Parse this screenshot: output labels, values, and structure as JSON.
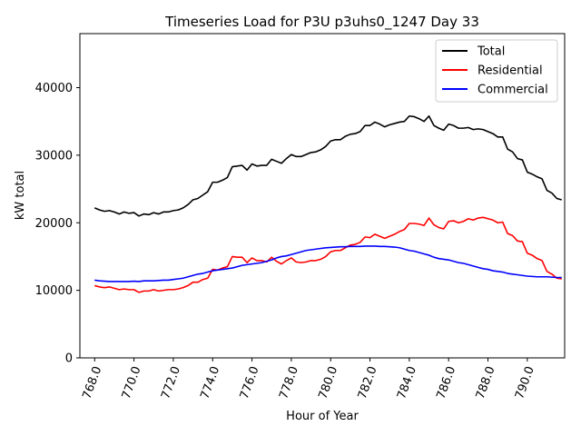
{
  "chart_data": {
    "type": "line",
    "title": "Timeseries Load for P3U p3uhs0_1247  Day 33",
    "xlabel": "Hour of Year",
    "ylabel": "kW total",
    "xlim": [
      767.25,
      791.9
    ],
    "ylim": [
      0,
      48000
    ],
    "xticks": [
      768,
      770,
      772,
      774,
      776,
      778,
      780,
      782,
      784,
      786,
      788,
      790
    ],
    "xtick_labels": [
      "768.0",
      "770.0",
      "772.0",
      "774.0",
      "776.0",
      "778.0",
      "780.0",
      "782.0",
      "784.0",
      "786.0",
      "788.0",
      "790.0"
    ],
    "yticks": [
      0,
      10000,
      20000,
      30000,
      40000
    ],
    "ytick_labels": [
      "0",
      "10000",
      "20000",
      "30000",
      "40000"
    ],
    "legend_position": "top-right",
    "grid": false,
    "x_start": 768.0,
    "x_step": 0.25,
    "series": [
      {
        "name": "Total",
        "color": "#000000",
        "values": [
          22200,
          21900,
          21700,
          21800,
          21600,
          21300,
          21600,
          21400,
          21500,
          21000,
          21300,
          21200,
          21500,
          21300,
          21600,
          21600,
          21800,
          21900,
          22200,
          22700,
          23400,
          23600,
          24100,
          24600,
          26000,
          26000,
          26300,
          26700,
          28300,
          28400,
          28500,
          27800,
          28700,
          28400,
          28500,
          28500,
          29400,
          29100,
          28800,
          29500,
          30100,
          29800,
          29800,
          30100,
          30400,
          30500,
          30800,
          31300,
          32100,
          32300,
          32300,
          32800,
          33100,
          33200,
          33500,
          34400,
          34400,
          34900,
          34600,
          34200,
          34500,
          34700,
          34900,
          35000,
          35800,
          35700,
          35400,
          35000,
          35800,
          34400,
          34000,
          33700,
          34600,
          34400,
          34000,
          34000,
          34100,
          33800,
          33900,
          33800,
          33500,
          33200,
          32700,
          32700,
          30900,
          30500,
          29500,
          29300,
          27500,
          27200,
          26800,
          26500,
          24800,
          24400,
          23600,
          23400
        ]
      },
      {
        "name": "Residential",
        "color": "#ff0000",
        "values": [
          10700,
          10500,
          10400,
          10500,
          10300,
          10100,
          10200,
          10100,
          10100,
          9700,
          9900,
          9900,
          10100,
          9900,
          10000,
          10100,
          10100,
          10200,
          10400,
          10700,
          11200,
          11200,
          11600,
          11800,
          13100,
          13000,
          13300,
          13500,
          15000,
          14900,
          14900,
          14100,
          14800,
          14400,
          14400,
          14200,
          14900,
          14300,
          13900,
          14400,
          14800,
          14200,
          14100,
          14200,
          14400,
          14400,
          14600,
          15000,
          15700,
          15900,
          15900,
          16300,
          16700,
          16800,
          17100,
          17900,
          17800,
          18300,
          18000,
          17700,
          18000,
          18300,
          18700,
          19000,
          19900,
          19900,
          19800,
          19600,
          20700,
          19700,
          19300,
          19100,
          20200,
          20300,
          20000,
          20200,
          20600,
          20400,
          20700,
          20800,
          20600,
          20400,
          20000,
          20100,
          18400,
          18100,
          17300,
          17200,
          15500,
          15200,
          14700,
          14400,
          12800,
          12400,
          11800,
          11700
        ]
      },
      {
        "name": "Commercial",
        "color": "#0000ff",
        "values": [
          11500,
          11400,
          11350,
          11300,
          11300,
          11300,
          11300,
          11300,
          11350,
          11300,
          11400,
          11400,
          11400,
          11450,
          11500,
          11500,
          11600,
          11700,
          11800,
          12000,
          12200,
          12400,
          12500,
          12700,
          12900,
          13000,
          13100,
          13200,
          13300,
          13500,
          13700,
          13800,
          13900,
          14000,
          14100,
          14300,
          14500,
          14800,
          15000,
          15100,
          15300,
          15500,
          15700,
          15900,
          16000,
          16100,
          16200,
          16300,
          16350,
          16400,
          16450,
          16450,
          16500,
          16500,
          16500,
          16550,
          16550,
          16550,
          16500,
          16500,
          16450,
          16400,
          16300,
          16100,
          15900,
          15800,
          15600,
          15400,
          15200,
          14900,
          14700,
          14600,
          14500,
          14300,
          14100,
          14000,
          13800,
          13600,
          13400,
          13200,
          13100,
          12900,
          12800,
          12700,
          12500,
          12400,
          12300,
          12200,
          12100,
          12050,
          12000,
          12000,
          12000,
          11950,
          11900,
          11900
        ]
      }
    ]
  }
}
